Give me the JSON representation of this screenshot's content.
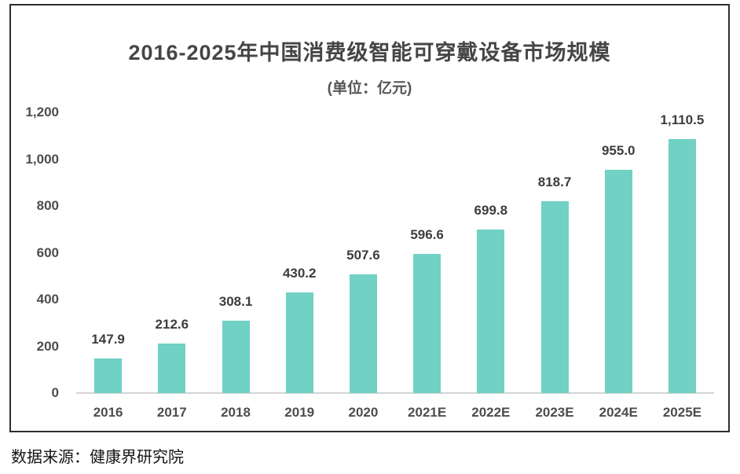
{
  "header": {
    "title": "2016-2025年中国消费级智能可穿戴设备市场规模",
    "subtitle": "(单位：亿元)"
  },
  "footer": {
    "source": "数据来源：健康界研究院"
  },
  "colors": {
    "bar": "#70d1c4",
    "title_text": "#454545",
    "axis_text": "#4d4d4d",
    "value_label_text": "#3d3d3d",
    "baseline": "#d4d4d4",
    "frame_border": "#2e2e2e"
  },
  "chart_data": {
    "type": "bar",
    "title": "2016-2025年中国消费级智能可穿戴设备市场规模",
    "subtitle": "(单位：亿元)",
    "unit": "亿元",
    "categories": [
      "2016",
      "2017",
      "2018",
      "2019",
      "2020",
      "2021E",
      "2022E",
      "2023E",
      "2024E",
      "2025E"
    ],
    "values": [
      147.9,
      212.6,
      308.1,
      430.2,
      507.6,
      596.6,
      699.8,
      818.7,
      955.0,
      1110.5
    ],
    "value_labels": [
      "147.9",
      "212.6",
      "308.1",
      "430.2",
      "507.6",
      "596.6",
      "699.8",
      "818.7",
      "955.0",
      "1,110.5"
    ],
    "xlabel": "",
    "ylabel": "",
    "ylim": [
      0,
      1200
    ],
    "yticks": [
      "0",
      "200",
      "400",
      "600",
      "800",
      "1,000",
      "1,200"
    ],
    "grid": false,
    "legend_position": "none"
  }
}
